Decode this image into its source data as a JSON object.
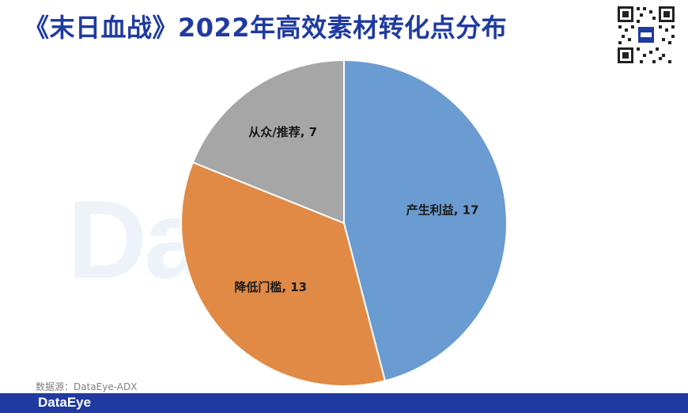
{
  "header": {
    "title": "《末日血战》2022年高效素材转化点分布"
  },
  "watermark": {
    "text": "DataEye"
  },
  "source_note": "数据源：DataEye-ADX",
  "footer": {
    "logo_text": "DataEye",
    "bar_color": "#1f3aa1"
  },
  "chart_data": {
    "type": "pie",
    "slices": [
      {
        "label": "产生利益",
        "value": 17,
        "color": "#6a9bd1",
        "display": "产生利益, 17"
      },
      {
        "label": "降低门槛",
        "value": 13,
        "color": "#e08a46",
        "display": "降低门槛, 13"
      },
      {
        "label": "从众/推荐",
        "value": 7,
        "color": "#a6a6a6",
        "display": "从众/推荐, 7"
      }
    ],
    "start": "12 o'clock",
    "direction": "clockwise",
    "legend": "none"
  }
}
